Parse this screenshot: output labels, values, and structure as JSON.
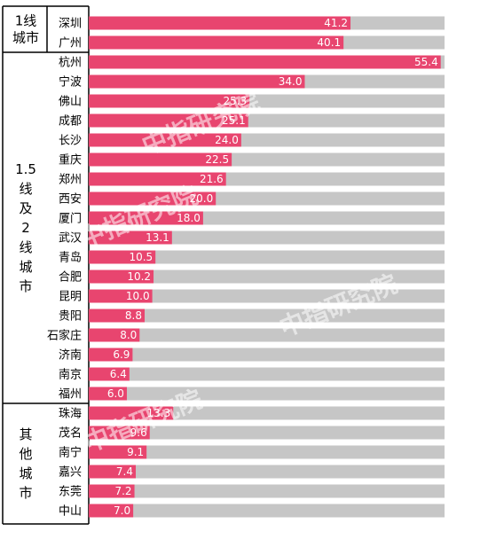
{
  "chart_data": {
    "type": "bar",
    "orientation": "horizontal",
    "xlim": [
      0,
      56
    ],
    "colors": {
      "bar": "#e8456f",
      "track": "#c6c6c6"
    },
    "groups": [
      {
        "label_lines": [
          "1线",
          "城市"
        ],
        "categories": [
          "深圳",
          "广州"
        ]
      },
      {
        "label_lines": [
          "1.5",
          "线",
          "及",
          "2",
          "线",
          "城",
          "市"
        ],
        "categories": [
          "杭州",
          "宁波",
          "佛山",
          "成都",
          "长沙",
          "重庆",
          "郑州",
          "西安",
          "厦门",
          "武汉",
          "青岛",
          "合肥",
          "昆明",
          "贵阳",
          "石家庄",
          "济南",
          "南京",
          "福州"
        ]
      },
      {
        "label_lines": [
          "其",
          "他",
          "城",
          "市"
        ],
        "categories": [
          "珠海",
          "茂名",
          "南宁",
          "嘉兴",
          "东莞",
          "中山"
        ]
      }
    ],
    "categories": [
      "深圳",
      "广州",
      "杭州",
      "宁波",
      "佛山",
      "成都",
      "长沙",
      "重庆",
      "郑州",
      "西安",
      "厦门",
      "武汉",
      "青岛",
      "合肥",
      "昆明",
      "贵阳",
      "石家庄",
      "济南",
      "南京",
      "福州",
      "珠海",
      "茂名",
      "南宁",
      "嘉兴",
      "东莞",
      "中山"
    ],
    "values": [
      41.2,
      40.1,
      55.4,
      34.0,
      25.3,
      25.1,
      24.0,
      22.5,
      21.6,
      20.0,
      18.0,
      13.1,
      10.5,
      10.2,
      10.0,
      8.8,
      8.0,
      6.9,
      6.4,
      6.0,
      13.3,
      9.6,
      9.1,
      7.4,
      7.2,
      7.0
    ],
    "value_labels": [
      "41.2",
      "40.1",
      "55.4",
      "34.0",
      "25.3",
      "25.1",
      "24.0",
      "22.5",
      "21.6",
      "20.0",
      "18.0",
      "13.1",
      "10.5",
      "10.2",
      "10.0",
      "8.8",
      "8.0",
      "6.9",
      "6.4",
      "6.0",
      "13.3",
      "9.6",
      "9.1",
      "7.4",
      "7.2",
      "7.0"
    ]
  },
  "watermark": "中指研究院"
}
